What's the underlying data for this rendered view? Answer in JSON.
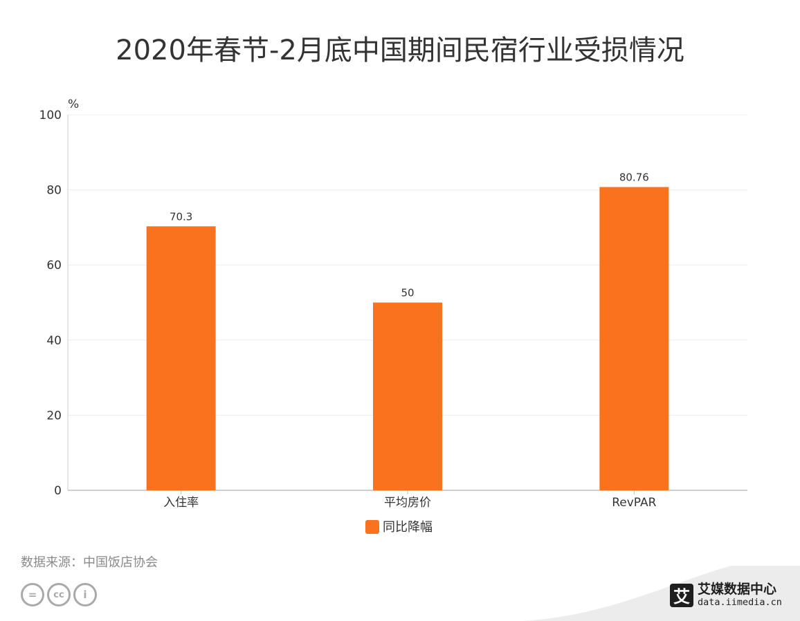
{
  "title": "2020年春节-2月底中国期间民宿行业受损情况",
  "chart_data": {
    "type": "bar",
    "categories": [
      "入住率",
      "平均房价",
      "RevPAR"
    ],
    "series": [
      {
        "name": "同比降幅",
        "values": [
          70.3,
          50,
          80.76
        ],
        "labels": [
          "70.3",
          "50",
          "80.76"
        ]
      }
    ],
    "ylabel": "%",
    "ylim": [
      0,
      100
    ],
    "yticks": [
      0,
      20,
      40,
      60,
      80,
      100
    ],
    "grid": true,
    "legend": "bottom",
    "bar_color": "#fa721e"
  },
  "source": "数据来源：中国饭店协会",
  "license_icons": [
    "equal-icon",
    "cc-icon",
    "person-icon"
  ],
  "license_glyphs": [
    "=",
    "cc",
    "i"
  ],
  "brand": {
    "logo_char": "艾",
    "name": "艾媒数据中心",
    "url": "data.iimedia.cn"
  }
}
